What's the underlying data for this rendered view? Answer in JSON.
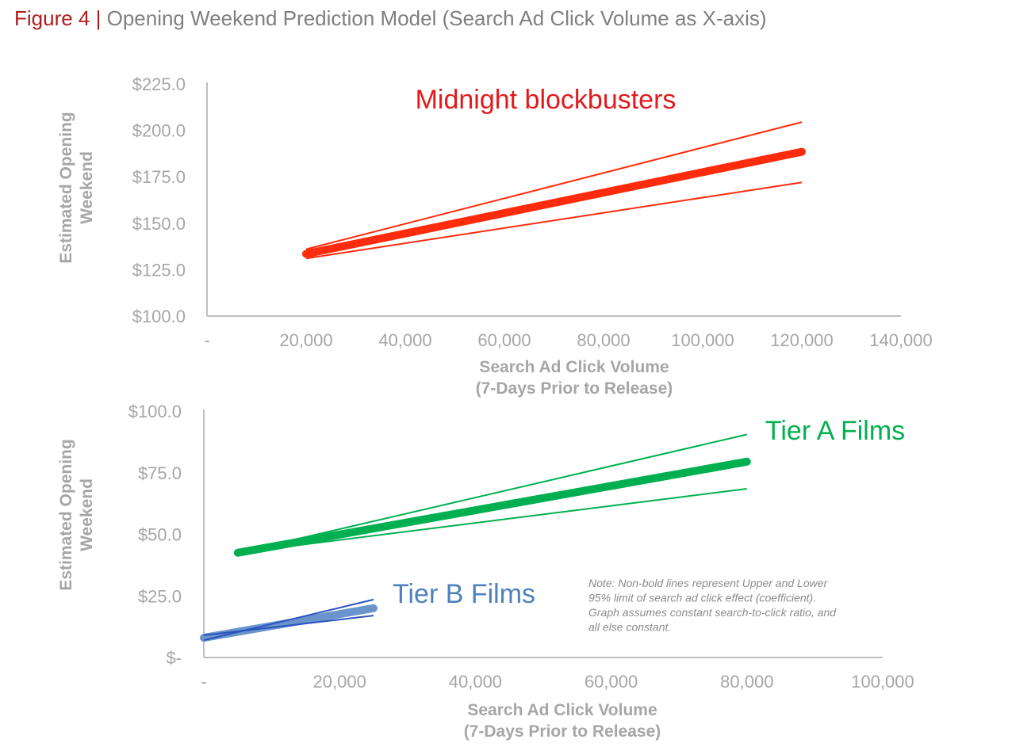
{
  "figure": {
    "label": "Figure 4 |",
    "title": "Opening Weekend Prediction Model (Search Ad Click Volume as X-axis)"
  },
  "note": [
    "Note: Non-bold lines represent Upper and Lower",
    "95% limit of search ad click effect (coefficient).",
    "Graph assumes constant search-to-click ratio, and",
    "all else constant."
  ],
  "chart_data": [
    {
      "type": "line",
      "xlabel": [
        "Search Ad Click Volume",
        "(7-Days Prior to Release)"
      ],
      "ylabel": [
        "Estimated Opening",
        "Weekend"
      ],
      "xlim": [
        0,
        140000
      ],
      "ylim": [
        100,
        225
      ],
      "x_ticks": [
        0,
        20000,
        40000,
        60000,
        80000,
        100000,
        120000,
        140000
      ],
      "x_tick_labels": [
        "-",
        "20,000",
        "40,000",
        "60,000",
        "80,000",
        "100,000",
        "120,000",
        "140,000"
      ],
      "y_ticks": [
        100,
        125,
        150,
        175,
        200,
        225
      ],
      "y_tick_labels": [
        "$100.0",
        "$125.0",
        "$150.0",
        "$175.0",
        "$200.0",
        "$225.0"
      ],
      "grid": false,
      "annotations": [
        {
          "text": "Midnight blockbusters",
          "color": "#e31a1c",
          "x": 69000,
          "y": 213
        }
      ],
      "series": [
        {
          "role": "estimate",
          "color": "#ff2b0d",
          "bold": true,
          "x": [
            20000,
            120000
          ],
          "y": [
            133.5,
            188.5
          ]
        },
        {
          "role": "upper",
          "color": "#ff2b0d",
          "bold": false,
          "x": [
            20000,
            120000
          ],
          "y": [
            136,
            204.5
          ]
        },
        {
          "role": "lower",
          "color": "#ff2b0d",
          "bold": false,
          "x": [
            20000,
            120000
          ],
          "y": [
            131,
            172
          ]
        }
      ]
    },
    {
      "type": "line",
      "xlabel": [
        "Search Ad Click Volume",
        "(7-Days Prior to Release)"
      ],
      "ylabel": [
        "Estimated Opening",
        "Weekend"
      ],
      "xlim": [
        0,
        100000
      ],
      "ylim": [
        0,
        100
      ],
      "x_ticks": [
        0,
        20000,
        40000,
        60000,
        80000,
        100000
      ],
      "x_tick_labels": [
        "-",
        "20,000",
        "40,000",
        "60,000",
        "80,000",
        "100,000"
      ],
      "y_ticks": [
        0,
        25,
        50,
        75,
        100
      ],
      "y_tick_labels": [
        "$-",
        "$25.0",
        "$50.0",
        "$75.0",
        "$100.0"
      ],
      "grid": false,
      "annotations": [
        {
          "text": "Tier A Films",
          "color": "#00b050",
          "x": 82000,
          "y": 91
        },
        {
          "text": "Tier B Films",
          "color": "#4f81bd",
          "x": 27000,
          "y": 25
        }
      ],
      "series": [
        {
          "role": "tier-a-estimate",
          "color": "#00b050",
          "bold": true,
          "x": [
            5000,
            80000
          ],
          "y": [
            42.5,
            79.5
          ]
        },
        {
          "role": "tier-a-upper",
          "color": "#00b050",
          "bold": false,
          "x": [
            5000,
            80000
          ],
          "y": [
            42.5,
            90.5
          ]
        },
        {
          "role": "tier-a-lower",
          "color": "#00b050",
          "bold": false,
          "x": [
            5000,
            80000
          ],
          "y": [
            42.5,
            68.5
          ]
        },
        {
          "role": "tier-b-estimate",
          "color": "#6a95cc",
          "bold": true,
          "x": [
            0,
            25000
          ],
          "y": [
            8,
            20
          ]
        },
        {
          "role": "tier-b-upper",
          "color": "#2a52be",
          "bold": false,
          "x": [
            0,
            25000
          ],
          "y": [
            7,
            23.5
          ]
        },
        {
          "role": "tier-b-lower",
          "color": "#2a52be",
          "bold": false,
          "x": [
            0,
            25000
          ],
          "y": [
            9,
            17
          ]
        }
      ]
    }
  ]
}
